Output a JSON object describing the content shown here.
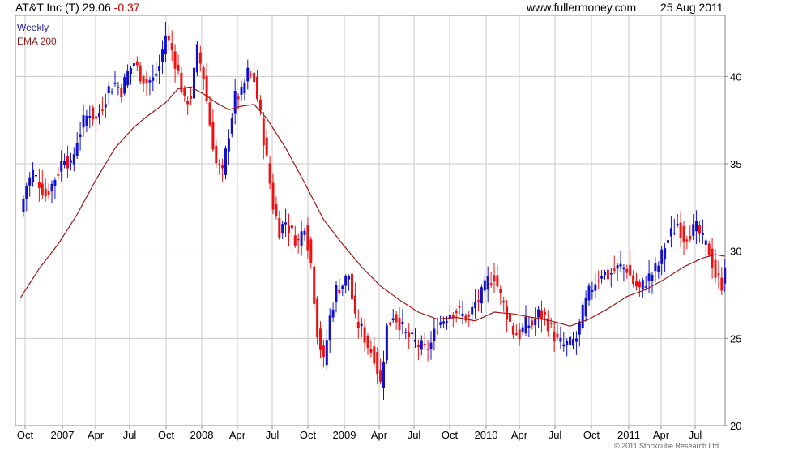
{
  "header": {
    "symbol": "AT&T Inc (T)",
    "price": "29.06",
    "change": "-0.37",
    "site": "www.fullermoney.com",
    "date": "25 Aug 2011"
  },
  "legend": [
    "Weekly",
    "EMA 200"
  ],
  "copyright": "© 2011 Stockcube Research Ltd",
  "colors": {
    "up": "#1010cc",
    "down": "#ee1111",
    "ema": "#a01818",
    "grid": "#c8c8c8"
  },
  "chart_data": {
    "type": "candlestick",
    "title": "AT&T Inc (T) 29.06 -0.37",
    "xlabel": "",
    "ylabel": "",
    "x_ticks": [
      "Oct",
      "2007",
      "Apr",
      "Jul",
      "Oct",
      "2008",
      "Apr",
      "Jul",
      "Oct",
      "2009",
      "Apr",
      "Jul",
      "Oct",
      "2010",
      "Apr",
      "Jul",
      "Oct",
      "2011",
      "Apr",
      "Jul"
    ],
    "y_ticks": [
      20,
      25,
      30,
      35,
      40
    ],
    "ylim": [
      20,
      43.5
    ],
    "grid": true,
    "legend_position": "top-left",
    "close_points": [
      [
        0,
        32.2
      ],
      [
        2,
        33.8
      ],
      [
        4,
        34.5
      ],
      [
        6,
        33.9
      ],
      [
        8,
        33.2
      ],
      [
        10,
        33.8
      ],
      [
        12,
        34.6
      ],
      [
        14,
        35.5
      ],
      [
        16,
        34.8
      ],
      [
        18,
        36.4
      ],
      [
        20,
        37.4
      ],
      [
        22,
        38.0
      ],
      [
        24,
        37.5
      ],
      [
        26,
        38.4
      ],
      [
        28,
        39.3
      ],
      [
        30,
        39.6
      ],
      [
        32,
        39.2
      ],
      [
        34,
        40.2
      ],
      [
        36,
        40.8
      ],
      [
        38,
        40.1
      ],
      [
        40,
        39.7
      ],
      [
        42,
        39.8
      ],
      [
        44,
        40.6
      ],
      [
        46,
        42.4
      ],
      [
        48,
        41.5
      ],
      [
        50,
        40.2
      ],
      [
        52,
        38.5
      ],
      [
        54,
        38.9
      ],
      [
        56,
        41.5
      ],
      [
        58,
        40.0
      ],
      [
        60,
        37.3
      ],
      [
        62,
        35.0
      ],
      [
        64,
        34.4
      ],
      [
        66,
        36.8
      ],
      [
        68,
        38.8
      ],
      [
        70,
        39.0
      ],
      [
        72,
        40.2
      ],
      [
        74,
        39.8
      ],
      [
        76,
        37.7
      ],
      [
        78,
        35.2
      ],
      [
        80,
        32.6
      ],
      [
        82,
        31.2
      ],
      [
        84,
        31.7
      ],
      [
        86,
        31.0
      ],
      [
        88,
        30.5
      ],
      [
        90,
        31.6
      ],
      [
        92,
        29.3
      ],
      [
        94,
        25.4
      ],
      [
        96,
        23.6
      ],
      [
        98,
        26.2
      ],
      [
        100,
        27.8
      ],
      [
        102,
        28.1
      ],
      [
        104,
        28.6
      ],
      [
        106,
        26.0
      ],
      [
        108,
        25.5
      ],
      [
        110,
        24.6
      ],
      [
        112,
        24.0
      ],
      [
        114,
        22.4
      ],
      [
        116,
        25.6
      ],
      [
        118,
        26.4
      ],
      [
        120,
        25.9
      ],
      [
        122,
        25.2
      ],
      [
        124,
        24.9
      ],
      [
        126,
        24.6
      ],
      [
        128,
        24.3
      ],
      [
        130,
        24.7
      ],
      [
        132,
        25.8
      ],
      [
        134,
        26.1
      ],
      [
        136,
        26.5
      ],
      [
        138,
        26.6
      ],
      [
        140,
        26.3
      ],
      [
        142,
        26.2
      ],
      [
        144,
        27.0
      ],
      [
        146,
        27.5
      ],
      [
        148,
        28.3
      ],
      [
        150,
        28.6
      ],
      [
        152,
        27.4
      ],
      [
        154,
        26.4
      ],
      [
        156,
        25.4
      ],
      [
        158,
        25.2
      ],
      [
        160,
        25.8
      ],
      [
        162,
        25.8
      ],
      [
        164,
        26.4
      ],
      [
        166,
        26.2
      ],
      [
        168,
        25.5
      ],
      [
        170,
        24.8
      ],
      [
        172,
        24.6
      ],
      [
        174,
        24.7
      ],
      [
        176,
        25.0
      ],
      [
        178,
        26.5
      ],
      [
        180,
        27.6
      ],
      [
        182,
        28.3
      ],
      [
        184,
        28.8
      ],
      [
        186,
        28.6
      ],
      [
        188,
        28.9
      ],
      [
        190,
        29.1
      ],
      [
        192,
        29.0
      ],
      [
        194,
        28.2
      ],
      [
        196,
        27.8
      ],
      [
        198,
        28.3
      ],
      [
        200,
        28.7
      ],
      [
        202,
        29.2
      ],
      [
        204,
        30.3
      ],
      [
        206,
        31.0
      ],
      [
        208,
        31.6
      ],
      [
        210,
        30.8
      ],
      [
        212,
        31.1
      ],
      [
        214,
        31.3
      ],
      [
        216,
        30.6
      ],
      [
        218,
        30.0
      ],
      [
        220,
        28.6
      ],
      [
        222,
        28.1
      ],
      [
        223,
        29.06
      ]
    ],
    "ema_points": [
      [
        0,
        27.3
      ],
      [
        6,
        29.0
      ],
      [
        12,
        30.4
      ],
      [
        18,
        32.1
      ],
      [
        24,
        34.1
      ],
      [
        30,
        35.9
      ],
      [
        36,
        37.1
      ],
      [
        40,
        37.7
      ],
      [
        46,
        38.5
      ],
      [
        50,
        39.3
      ],
      [
        54,
        39.4
      ],
      [
        58,
        39.0
      ],
      [
        62,
        38.5
      ],
      [
        66,
        38.1
      ],
      [
        70,
        38.3
      ],
      [
        74,
        38.4
      ],
      [
        78,
        37.6
      ],
      [
        84,
        35.9
      ],
      [
        90,
        33.9
      ],
      [
        96,
        31.8
      ],
      [
        102,
        30.4
      ],
      [
        108,
        29.1
      ],
      [
        114,
        28.0
      ],
      [
        120,
        27.2
      ],
      [
        126,
        26.5
      ],
      [
        132,
        26.1
      ],
      [
        138,
        26.2
      ],
      [
        144,
        26.0
      ],
      [
        150,
        26.5
      ],
      [
        156,
        26.4
      ],
      [
        162,
        26.2
      ],
      [
        168,
        26.0
      ],
      [
        174,
        25.7
      ],
      [
        180,
        26.1
      ],
      [
        186,
        26.7
      ],
      [
        192,
        27.4
      ],
      [
        198,
        27.8
      ],
      [
        204,
        28.4
      ],
      [
        210,
        29.1
      ],
      [
        216,
        29.6
      ],
      [
        220,
        29.8
      ],
      [
        223,
        29.7
      ]
    ]
  }
}
